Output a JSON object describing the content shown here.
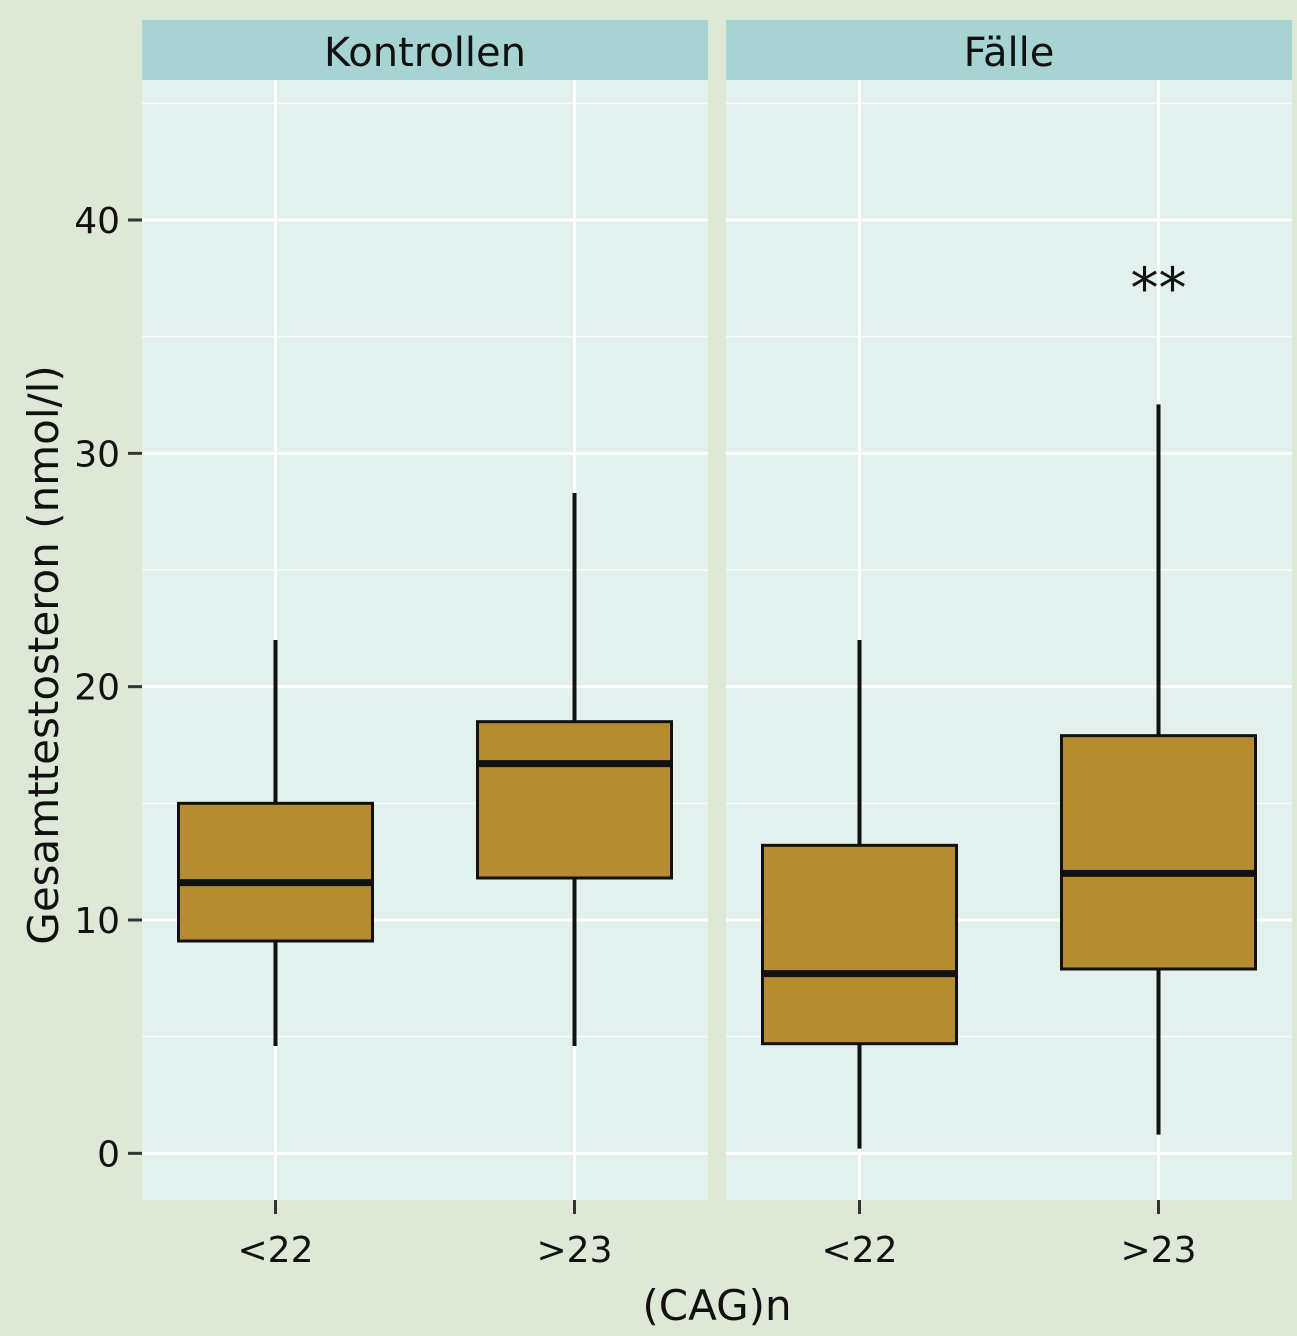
{
  "chart_data": {
    "type": "boxplot",
    "xlabel": "(CAG)n",
    "ylabel": "Gesamttestosteron (nmol/l)",
    "ylim": [
      -2,
      46
    ],
    "yticks": [
      0,
      10,
      20,
      30,
      40
    ],
    "grid": true,
    "categories": [
      "<22",
      ">23"
    ],
    "panels": [
      {
        "label": "Kontrollen",
        "boxes": [
          {
            "category": "<22",
            "whisker_low": 4.6,
            "q1": 9.1,
            "median": 11.6,
            "q3": 15.0,
            "whisker_high": 22.0
          },
          {
            "category": ">23",
            "whisker_low": 4.6,
            "q1": 11.8,
            "median": 16.7,
            "q3": 18.5,
            "whisker_high": 28.3
          }
        ],
        "annotation": ""
      },
      {
        "label": "Fälle",
        "boxes": [
          {
            "category": "<22",
            "whisker_low": 0.2,
            "q1": 4.7,
            "median": 7.7,
            "q3": 13.2,
            "whisker_high": 22.0
          },
          {
            "category": ">23",
            "whisker_low": 0.8,
            "q1": 7.9,
            "median": 12.0,
            "q3": 17.9,
            "whisker_high": 32.1
          }
        ],
        "annotation": "**"
      }
    ],
    "colors": {
      "box_fill": "#b58d2f",
      "box_stroke": "#111111",
      "panel_bg": "#e2f0ee",
      "strip_bg": "#a7d4d3",
      "grid": "#ffffff",
      "page_bg": "#dde8d6"
    }
  }
}
